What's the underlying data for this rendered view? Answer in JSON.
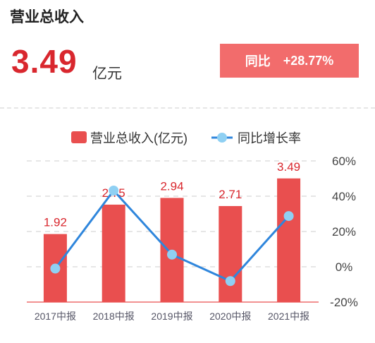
{
  "header": {
    "title": "营业总收入",
    "value": "3.49",
    "unit": "亿元",
    "yoy_label": "同比",
    "yoy_value": "+28.77%"
  },
  "colors": {
    "bar": "#e94f4f",
    "line": "#2f86dc",
    "marker": "#8fd0f3",
    "accent": "#d9272e",
    "badge": "#f26c6c"
  },
  "chart_data": {
    "type": "bar",
    "categories": [
      "2017中报",
      "2018中报",
      "2019中报",
      "2020中报",
      "2021中报"
    ],
    "series": [
      {
        "name": "营业总收入(亿元)",
        "type": "bar",
        "values": [
          1.92,
          2.75,
          2.94,
          2.71,
          3.49
        ],
        "labels": [
          "1.92",
          "2.75",
          "2.94",
          "2.71",
          "3.49"
        ]
      },
      {
        "name": "同比增长率",
        "type": "line",
        "axis": "right",
        "values": [
          -1,
          43.2,
          6.9,
          -8.1,
          28.77
        ]
      }
    ],
    "y2_ticks": [
      "60%",
      "40%",
      "20%",
      "0%",
      "-20%"
    ],
    "y2lim": [
      -20,
      60
    ],
    "grid": true,
    "legend": "top"
  }
}
